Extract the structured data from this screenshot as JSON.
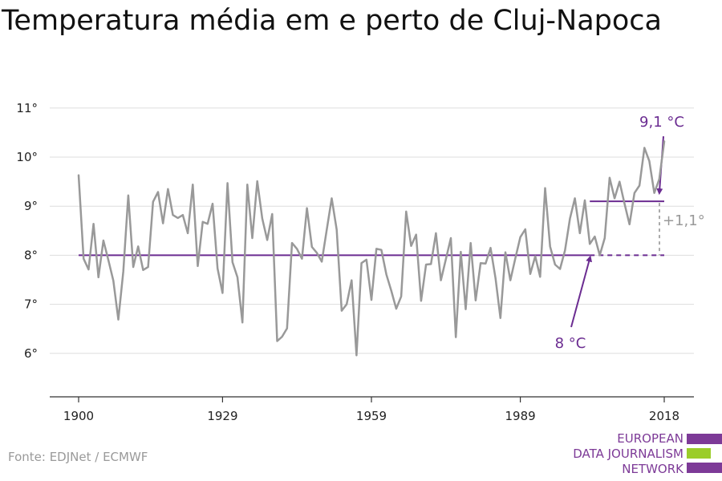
{
  "title": "Temperatura média em e perto de Cluj-Napoca",
  "source": "Fonte: EDJNet / ECMWF",
  "logo": {
    "line1": "EUROPEAN",
    "line2": "DATA JOURNALISM",
    "line3": "NETWORK"
  },
  "colors": {
    "series": "#999999",
    "accent": "#6b2c91",
    "grid": "#dddddd",
    "logo_green": "#9bcd2a"
  },
  "chart_data": {
    "type": "line",
    "title": "Temperatura média em e perto de Cluj-Napoca",
    "xlabel": "",
    "ylabel": "",
    "ylim": [
      5,
      11
    ],
    "xlim": [
      1900,
      2018
    ],
    "yticks": [
      "6°",
      "7°",
      "8°",
      "9°",
      "10°",
      "11°"
    ],
    "xticks": [
      "1900",
      "1929",
      "1959",
      "1989",
      "2018"
    ],
    "grid": true,
    "series": [
      {
        "x": [
          1900,
          1901,
          1902,
          1903,
          1904,
          1905,
          1906,
          1907,
          1908,
          1909,
          1910,
          1911,
          1912,
          1913,
          1914,
          1915,
          1916,
          1917,
          1918,
          1919,
          1920,
          1921,
          1922,
          1923,
          1924,
          1925,
          1926,
          1927,
          1928,
          1929,
          1930,
          1931,
          1932,
          1933,
          1934,
          1935,
          1936,
          1937,
          1938,
          1939,
          1940,
          1941,
          1942,
          1943,
          1944,
          1945,
          1946,
          1947,
          1948,
          1949,
          1950,
          1951,
          1952,
          1953,
          1954,
          1955,
          1956,
          1957,
          1958,
          1959,
          1960,
          1961,
          1962,
          1963,
          1964,
          1965,
          1966,
          1967,
          1968,
          1969,
          1970,
          1971,
          1972,
          1973,
          1974,
          1975,
          1976,
          1977,
          1978,
          1979,
          1980,
          1981,
          1982,
          1983,
          1984,
          1985,
          1986,
          1987,
          1988,
          1989,
          1990,
          1991,
          1992,
          1993,
          1994,
          1995,
          1996,
          1997,
          1998,
          1999,
          2000,
          2001,
          2002,
          2003,
          2004,
          2005,
          2006,
          2007,
          2008,
          2009,
          2010,
          2011,
          2012,
          2013,
          2014,
          2015,
          2016,
          2017,
          2018
        ],
        "values": [
          9.63,
          7.93,
          7.71,
          8.64,
          7.55,
          8.3,
          7.9,
          7.48,
          6.69,
          7.67,
          9.22,
          7.76,
          8.18,
          7.7,
          7.76,
          9.09,
          9.29,
          8.65,
          9.35,
          8.82,
          8.76,
          8.82,
          8.45,
          9.44,
          7.78,
          8.68,
          8.64,
          9.05,
          7.73,
          7.23,
          9.47,
          7.86,
          7.55,
          6.63,
          9.44,
          8.35,
          9.51,
          8.75,
          8.31,
          8.84,
          6.25,
          6.34,
          6.51,
          8.25,
          8.13,
          7.93,
          8.96,
          8.17,
          8.05,
          7.87,
          8.52,
          9.16,
          8.52,
          6.87,
          7.0,
          7.49,
          5.96,
          7.84,
          7.91,
          7.09,
          8.13,
          8.11,
          7.61,
          7.28,
          6.91,
          7.16,
          8.89,
          8.19,
          8.42,
          7.07,
          7.81,
          7.82,
          8.45,
          7.49,
          7.92,
          8.35,
          6.33,
          8.07,
          6.9,
          8.25,
          7.08,
          7.84,
          7.83,
          8.15,
          7.53,
          6.72,
          8.06,
          7.49,
          7.94,
          8.37,
          8.53,
          7.62,
          7.98,
          7.56,
          9.37,
          8.18,
          7.81,
          7.72,
          8.1,
          8.75,
          9.16,
          8.45,
          9.12,
          8.23,
          8.38,
          8.0,
          8.35,
          9.58,
          9.16,
          9.5,
          9.05,
          8.63,
          9.27,
          9.42,
          10.19,
          9.92,
          9.27,
          9.55,
          10.32
        ]
      }
    ],
    "annotations": [
      {
        "label": "8 °C",
        "from": 1900,
        "to": 2018,
        "y": 8.0
      },
      {
        "label": "9,1 °C",
        "from": 2003,
        "to": 2018,
        "y": 9.1
      },
      {
        "label": "+1,1°",
        "x": 2018,
        "from_y": 8.0,
        "to_y": 9.1
      }
    ]
  }
}
